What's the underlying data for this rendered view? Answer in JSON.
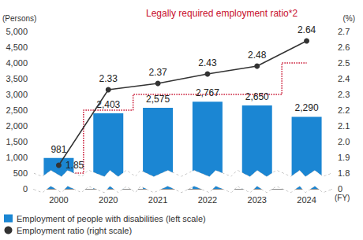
{
  "chart_data": {
    "type": "bar",
    "categories": [
      "2000",
      "2020",
      "2021",
      "2022",
      "2023",
      "2024"
    ],
    "x_label": "(FY)",
    "y_label": "(Persons)",
    "y2_label": "(%)",
    "series": [
      {
        "name": "Employment of people with disabilities (left scale)",
        "type": "bar",
        "color": "#1b86d3",
        "values": [
          981,
          2403,
          2575,
          2767,
          2650,
          2290
        ],
        "value_labels": [
          "981",
          "2,403",
          "2,575",
          "2,767",
          "2,650",
          "2,290"
        ],
        "data_labels": true
      },
      {
        "name": "Employment ratio (right scale)",
        "type": "line",
        "color": "#333333",
        "marker": "circle",
        "axis": "y2",
        "values": [
          1.85,
          2.33,
          2.37,
          2.43,
          2.48,
          2.64
        ],
        "data_labels": true
      },
      {
        "name": "Legally required employment ratio*2",
        "type": "line",
        "color": "#c8102e",
        "line_style": "dotted",
        "axis": "y2",
        "values": [
          1.8,
          2.2,
          2.3,
          2.3,
          2.3,
          2.5
        ],
        "data_labels": false
      }
    ],
    "ylim": [
      0,
      5000
    ],
    "yticks": [
      0,
      500,
      {
        "value": 1000,
        "label": "1,000"
      },
      {
        "value": 1500,
        "label": "1,500"
      },
      {
        "value": 2000,
        "label": "2,000"
      },
      {
        "value": 2500,
        "label": "2,500"
      },
      {
        "value": 3000,
        "label": "3,000"
      },
      {
        "value": 3500,
        "label": "3,500"
      },
      {
        "value": 4000,
        "label": "4,000"
      },
      {
        "value": 4500,
        "label": "4,500"
      },
      {
        "value": 5000,
        "label": "5,000"
      }
    ],
    "y2lim": [
      0,
      2.7
    ],
    "y2ticks": [
      0,
      1.8,
      1.9,
      {
        "value": 2,
        "label": "2.0"
      },
      2.1,
      2.2,
      2.3,
      2.4,
      2.5,
      2.6,
      2.7
    ],
    "grid": false,
    "legend": "bottom left"
  }
}
